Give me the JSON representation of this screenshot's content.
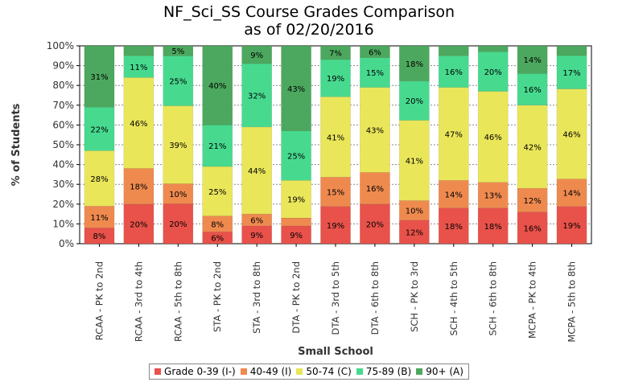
{
  "chart_data": {
    "type": "bar",
    "stacked": true,
    "title": "NF_Sci_SS Course Grades Comparison",
    "subtitle": "as of 02/20/2016",
    "xlabel": "Small School",
    "ylabel": "% of Students",
    "ylim": [
      0,
      100
    ],
    "yticks": [
      "0%",
      "10%",
      "20%",
      "30%",
      "40%",
      "50%",
      "60%",
      "70%",
      "80%",
      "90%",
      "100%"
    ],
    "grid": true,
    "legend_position": "bottom",
    "categories": [
      "RCAA - PK to 2nd",
      "RCAA - 3rd to 4th",
      "RCAA - 5th to 8th",
      "STA - PK to 2nd",
      "STA - 3rd to 8th",
      "DTA - PK to 2nd",
      "DTA - 3rd to 5th",
      "DTA - 6th to 8th",
      "SCH - PK to 3rd",
      "SCH - 4th to 5th",
      "SCH - 6th to 8th",
      "MCPA - PK to 4th",
      "MCPA - 5th to 8th"
    ],
    "series": [
      {
        "name": "Grade 0-39 (I-)",
        "color": "#e8524a",
        "values": [
          8,
          20,
          20,
          6,
          9,
          9,
          19,
          20,
          12,
          18,
          18,
          16,
          19
        ]
      },
      {
        "name": "40-49 (I)",
        "color": "#ef8a4f",
        "values": [
          11,
          18,
          10,
          8,
          6,
          4,
          15,
          16,
          10,
          14,
          13,
          12,
          14
        ]
      },
      {
        "name": "50-74 (C)",
        "color": "#eae65a",
        "values": [
          28,
          46,
          39,
          25,
          44,
          19,
          41,
          43,
          41,
          47,
          46,
          42,
          46
        ]
      },
      {
        "name": "75-89 (B)",
        "color": "#47da8f",
        "values": [
          22,
          11,
          25,
          21,
          32,
          25,
          19,
          15,
          20,
          16,
          20,
          16,
          17
        ]
      },
      {
        "name": "90+ (A)",
        "color": "#4ca85e",
        "values": [
          31,
          5,
          5,
          40,
          9,
          43,
          7,
          6,
          18,
          5,
          3,
          14,
          5
        ]
      }
    ],
    "data_labels": [
      [
        "8%",
        "20%",
        "20%",
        "6%",
        "9%",
        "9%",
        "19%",
        "20%",
        "12%",
        "18%",
        "18%",
        "16%",
        "19%"
      ],
      [
        "11%",
        "18%",
        "10%",
        "8%",
        "6%",
        "",
        "15%",
        "16%",
        "10%",
        "14%",
        "13%",
        "12%",
        "14%"
      ],
      [
        "28%",
        "46%",
        "39%",
        "25%",
        "44%",
        "19%",
        "41%",
        "43%",
        "41%",
        "47%",
        "46%",
        "42%",
        "46%"
      ],
      [
        "22%",
        "11%",
        "25%",
        "21%",
        "32%",
        "25%",
        "19%",
        "15%",
        "20%",
        "16%",
        "20%",
        "16%",
        "17%"
      ],
      [
        "31%",
        "",
        "5%",
        "40%",
        "9%",
        "43%",
        "7%",
        "6%",
        "18%",
        "",
        "",
        "14%",
        ""
      ]
    ]
  }
}
